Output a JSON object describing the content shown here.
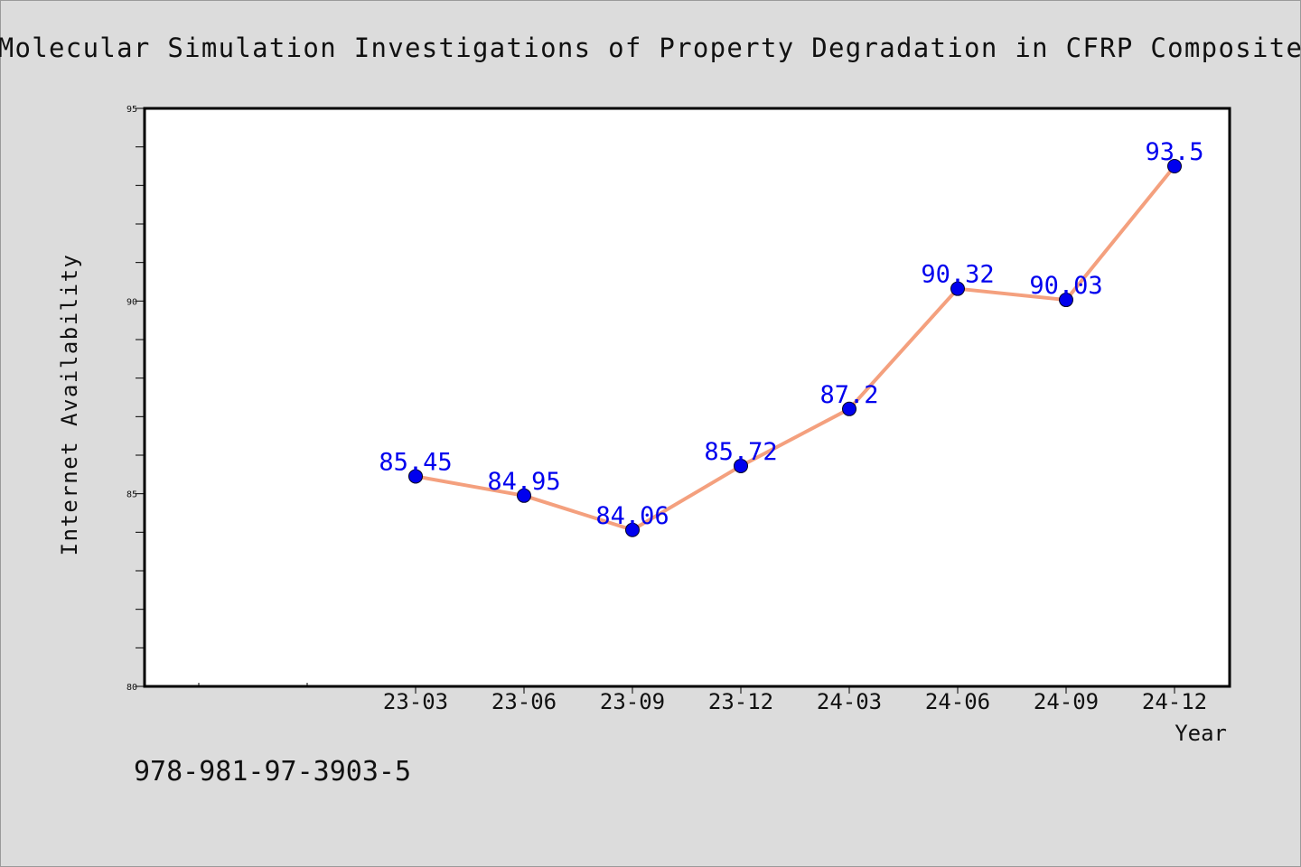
{
  "chart_data": {
    "type": "line",
    "title": "Molecular Simulation Investigations of Property Degradation in CFRP Composite",
    "xlabel": "Year",
    "ylabel": "Internet Availability",
    "categories": [
      "23-03",
      "23-06",
      "23-09",
      "23-12",
      "24-03",
      "24-06",
      "24-09",
      "24-12"
    ],
    "series": [
      {
        "values": [
          85.45,
          84.95,
          84.06,
          85.72,
          87.2,
          90.32,
          90.03,
          93.5
        ],
        "labels": [
          "85.45",
          "84.95",
          "84.06",
          "85.72",
          "87.2",
          "90.32",
          "90.03",
          "93.5"
        ]
      }
    ],
    "ylim": [
      80,
      95
    ],
    "yticks": [
      "80",
      "85",
      "90",
      "95"
    ],
    "grid": false,
    "legend": "none",
    "footer_text": "978-981-97-3903-5",
    "colors": {
      "line": "#f4a07e",
      "marker": "#0000ee",
      "label": "#0000ee",
      "background": "#dcdcdc",
      "plot_background": "#ffffff"
    }
  }
}
